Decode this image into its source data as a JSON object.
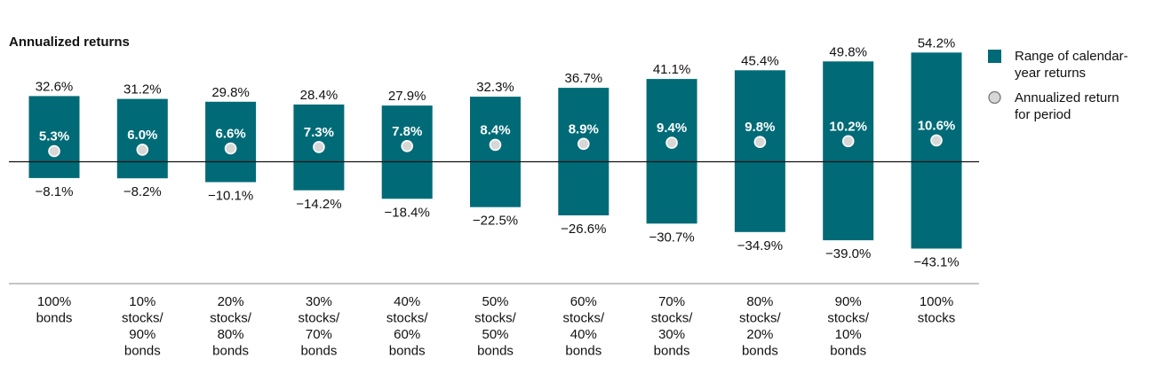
{
  "chart_data": {
    "type": "bar",
    "title": "Annualized returns",
    "categories": [
      [
        "100%",
        "bonds"
      ],
      [
        "10%",
        "stocks/",
        "90%",
        "bonds"
      ],
      [
        "20%",
        "stocks/",
        "80%",
        "bonds"
      ],
      [
        "30%",
        "stocks/",
        "70%",
        "bonds"
      ],
      [
        "40%",
        "stocks/",
        "60%",
        "bonds"
      ],
      [
        "50%",
        "stocks/",
        "50%",
        "bonds"
      ],
      [
        "60%",
        "stocks/",
        "40%",
        "bonds"
      ],
      [
        "70%",
        "stocks/",
        "30%",
        "bonds"
      ],
      [
        "80%",
        "stocks/",
        "20%",
        "bonds"
      ],
      [
        "90%",
        "stocks/",
        "10%",
        "bonds"
      ],
      [
        "100%",
        "stocks"
      ]
    ],
    "series": [
      {
        "name": "Range of calendar-year returns",
        "high": [
          32.6,
          31.2,
          29.8,
          28.4,
          27.9,
          32.3,
          36.7,
          41.1,
          45.4,
          49.8,
          54.2
        ],
        "low": [
          -8.1,
          -8.2,
          -10.1,
          -14.2,
          -18.4,
          -22.5,
          -26.6,
          -30.7,
          -34.9,
          -39.0,
          -43.1
        ],
        "high_labels": [
          "32.6%",
          "31.2%",
          "29.8%",
          "28.4%",
          "27.9%",
          "32.3%",
          "36.7%",
          "41.1%",
          "45.4%",
          "49.8%",
          "54.2%"
        ],
        "low_labels": [
          "−8.1%",
          "−8.2%",
          "−10.1%",
          "−14.2%",
          "−18.4%",
          "−22.5%",
          "−26.6%",
          "−30.7%",
          "−34.9%",
          "−39.0%",
          "−43.1%"
        ]
      },
      {
        "name": "Annualized return for period",
        "values": [
          5.3,
          6.0,
          6.6,
          7.3,
          7.8,
          8.4,
          8.9,
          9.4,
          9.8,
          10.2,
          10.6
        ],
        "labels": [
          "5.3%",
          "6.0%",
          "6.6%",
          "7.3%",
          "7.8%",
          "8.4%",
          "8.9%",
          "9.4%",
          "9.8%",
          "10.2%",
          "10.6%"
        ]
      }
    ],
    "legend": {
      "placement": "right",
      "items": [
        {
          "lines": [
            "Range of calendar-",
            "year returns"
          ],
          "marker": "square"
        },
        {
          "lines": [
            "Annualized return",
            "for period"
          ],
          "marker": "circle"
        }
      ]
    },
    "colors": {
      "bar": "#006b77",
      "marker_fill": "#d7d7d7",
      "marker_stroke": "#ffffff",
      "baseline": "#111111",
      "divider": "#888888"
    },
    "ylim": [
      -43.1,
      54.2
    ],
    "grid": false
  }
}
